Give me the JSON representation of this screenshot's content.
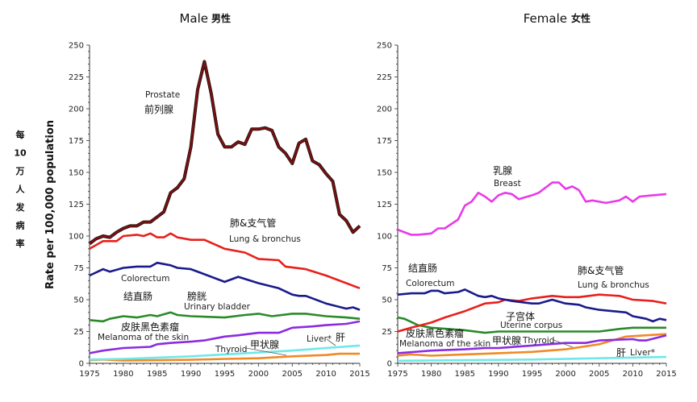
{
  "side_label": "每10万人发病率",
  "chart_data": [
    {
      "type": "line",
      "title": "Male",
      "title_cn": "男性",
      "ylabel": "Rate per 100,000 population",
      "xlim": [
        1975,
        2015
      ],
      "ylim": [
        0,
        250
      ],
      "xticks": [
        1975,
        1980,
        1985,
        1990,
        1995,
        2000,
        2005,
        2010,
        2015
      ],
      "yticks": [
        0,
        25,
        50,
        75,
        100,
        125,
        150,
        175,
        200,
        225,
        250
      ],
      "grid": false,
      "series": [
        {
          "name": "Prostate",
          "name_cn": "前列腺",
          "color": "#7a1010",
          "x": [
            1975,
            1976,
            1977,
            1978,
            1979,
            1980,
            1981,
            1982,
            1983,
            1984,
            1985,
            1986,
            1987,
            1988,
            1989,
            1990,
            1991,
            1992,
            1993,
            1994,
            1995,
            1996,
            1997,
            1998,
            1999,
            2000,
            2001,
            2002,
            2003,
            2004,
            2005,
            2006,
            2007,
            2008,
            2009,
            2010,
            2011,
            2012,
            2013,
            2014,
            2015
          ],
          "y": [
            94,
            98,
            100,
            99,
            103,
            106,
            108,
            108,
            111,
            111,
            115,
            119,
            134,
            138,
            145,
            170,
            215,
            237,
            212,
            180,
            170,
            170,
            174,
            172,
            184,
            184,
            185,
            183,
            170,
            165,
            157,
            173,
            176,
            159,
            156,
            149,
            143,
            117,
            112,
            103,
            108
          ]
        },
        {
          "name": "Lung & bronchus",
          "name_cn": "肺&支气管",
          "color": "#e8201c",
          "x": [
            1975,
            1977,
            1979,
            1980,
            1982,
            1983,
            1984,
            1985,
            1986,
            1987,
            1988,
            1990,
            1992,
            1995,
            1998,
            2000,
            2003,
            2004,
            2007,
            2010,
            2015
          ],
          "y": [
            90,
            96,
            96,
            100,
            101,
            100,
            102,
            99,
            99,
            102,
            99,
            97,
            97,
            90,
            87,
            82,
            81,
            76,
            74,
            69,
            59
          ]
        },
        {
          "name": "Colorectum",
          "name_cn": "结直肠",
          "color": "#1a1a8c",
          "x": [
            1975,
            1977,
            1978,
            1980,
            1982,
            1984,
            1985,
            1987,
            1988,
            1990,
            1992,
            1995,
            1997,
            2000,
            2003,
            2005,
            2006,
            2007,
            2010,
            2013,
            2014,
            2015
          ],
          "y": [
            69,
            74,
            72,
            75,
            76,
            76,
            79,
            77,
            75,
            74,
            70,
            64,
            68,
            63,
            59,
            54,
            53,
            53,
            47,
            43,
            44,
            42
          ]
        },
        {
          "name": "Urinary bladder",
          "name_cn": "膀胱",
          "color": "#2a8a2a",
          "x": [
            1975,
            1977,
            1978,
            1980,
            1982,
            1984,
            1985,
            1987,
            1988,
            1990,
            1995,
            1998,
            2000,
            2002,
            2005,
            2007,
            2010,
            2013,
            2015
          ],
          "y": [
            34,
            33,
            35,
            37,
            36,
            38,
            37,
            40,
            38,
            37,
            36,
            38,
            39,
            37,
            39,
            39,
            37,
            36,
            35
          ]
        },
        {
          "name": "Melanoma of the skin",
          "name_cn": "皮肤黑色素瘤",
          "color": "#8a2be2",
          "x": [
            1975,
            1977,
            1980,
            1984,
            1985,
            1987,
            1990,
            1992,
            1995,
            1997,
            2000,
            2003,
            2005,
            2008,
            2010,
            2013,
            2015
          ],
          "y": [
            8,
            10,
            12,
            13,
            15,
            16,
            17,
            18,
            21,
            22,
            24,
            24,
            28,
            29,
            30,
            31,
            33
          ]
        },
        {
          "name": "Liver*",
          "name_cn": "肝",
          "color": "#6fe8e8",
          "x": [
            1975,
            1980,
            1985,
            1990,
            1995,
            2000,
            2005,
            2010,
            2015
          ],
          "y": [
            3,
            3.5,
            4.5,
            5.5,
            7,
            8.5,
            10,
            12,
            14
          ]
        },
        {
          "name": "Thyroid",
          "name_cn": "甲状腺",
          "color": "#f08a24",
          "x": [
            1975,
            1977,
            1980,
            1985,
            1990,
            1995,
            2000,
            2005,
            2010,
            2012,
            2015
          ],
          "y": [
            2.5,
            3,
            2.3,
            2.5,
            2.8,
            3.5,
            4,
            5.5,
            6.5,
            7.5,
            7.5
          ]
        }
      ]
    },
    {
      "type": "line",
      "title": "Female",
      "title_cn": "女性",
      "xlim": [
        1975,
        2015
      ],
      "ylim": [
        0,
        250
      ],
      "xticks": [
        1975,
        1980,
        1985,
        1990,
        1995,
        2000,
        2005,
        2010,
        2015
      ],
      "yticks": [
        0,
        25,
        50,
        75,
        100,
        125,
        150,
        175,
        200,
        225,
        250
      ],
      "grid": false,
      "series": [
        {
          "name": "Breast",
          "name_cn": "乳腺",
          "color": "#e83ae8",
          "x": [
            1975,
            1977,
            1978,
            1980,
            1981,
            1982,
            1984,
            1985,
            1986,
            1987,
            1988,
            1989,
            1990,
            1991,
            1992,
            1993,
            1995,
            1996,
            1997,
            1998,
            1999,
            2000,
            2001,
            2002,
            2003,
            2004,
            2006,
            2008,
            2009,
            2010,
            2011,
            2013,
            2015
          ],
          "y": [
            105,
            101,
            101,
            102,
            106,
            106,
            113,
            124,
            127,
            134,
            131,
            127,
            132,
            134,
            133,
            129,
            132,
            134,
            138,
            142,
            142,
            137,
            139,
            136,
            127,
            128,
            126,
            128,
            131,
            127,
            131,
            132,
            133
          ]
        },
        {
          "name": "Colorectum",
          "name_cn": "结直肠",
          "color": "#1a1a8c",
          "x": [
            1975,
            1977,
            1979,
            1980,
            1981,
            1982,
            1984,
            1985,
            1987,
            1988,
            1989,
            1990,
            1992,
            1995,
            1996,
            1998,
            2000,
            2002,
            2003,
            2005,
            2007,
            2009,
            2010,
            2012,
            2013,
            2014,
            2015
          ],
          "y": [
            54,
            55,
            55,
            57,
            57,
            55,
            56,
            58,
            53,
            52,
            53,
            51,
            49,
            47,
            47,
            50,
            47,
            46,
            44,
            42,
            41,
            40,
            37,
            35,
            33,
            35,
            34
          ]
        },
        {
          "name": "Lung & bronchus",
          "name_cn": "肺&支气管",
          "color": "#e8201c",
          "x": [
            1975,
            1977,
            1980,
            1982,
            1985,
            1987,
            1988,
            1990,
            1991,
            1993,
            1995,
            1998,
            2000,
            2002,
            2005,
            2008,
            2010,
            2013,
            2015
          ],
          "y": [
            25,
            28,
            32,
            36,
            41,
            45,
            47,
            48,
            50,
            49,
            51,
            53,
            52,
            52,
            54,
            53,
            50,
            49,
            47
          ]
        },
        {
          "name": "Uterine corpus",
          "name_cn": "子宫体",
          "color": "#2a8a2a",
          "x": [
            1975,
            1976,
            1978,
            1980,
            1985,
            1988,
            1990,
            1995,
            2000,
            2005,
            2008,
            2010,
            2013,
            2015
          ],
          "y": [
            36,
            35,
            30,
            28,
            26,
            24,
            25,
            25,
            25,
            25,
            27,
            28,
            28,
            28
          ]
        },
        {
          "name": "Melanoma of the skin",
          "name_cn": "皮肤黑色素瘤",
          "color": "#8a2be2",
          "x": [
            1975,
            1980,
            1985,
            1988,
            1990,
            1995,
            2000,
            2003,
            2005,
            2010,
            2011,
            2012,
            2015
          ],
          "y": [
            8,
            10,
            11,
            12,
            12,
            14,
            16,
            16,
            18,
            19,
            18,
            18,
            22
          ]
        },
        {
          "name": "Thyroid",
          "name_cn": "甲状腺",
          "color": "#f08a24",
          "x": [
            1975,
            1977,
            1980,
            1985,
            1990,
            1995,
            2000,
            2005,
            2009,
            2012,
            2015
          ],
          "y": [
            6,
            7,
            6,
            7,
            8,
            9,
            11,
            15,
            21,
            22,
            23
          ]
        },
        {
          "name": "Liver*",
          "name_cn": "肝",
          "color": "#6fe8e8",
          "x": [
            1975,
            1985,
            1995,
            2005,
            2015
          ],
          "y": [
            2,
            2.5,
            3,
            4,
            5
          ]
        }
      ]
    }
  ]
}
